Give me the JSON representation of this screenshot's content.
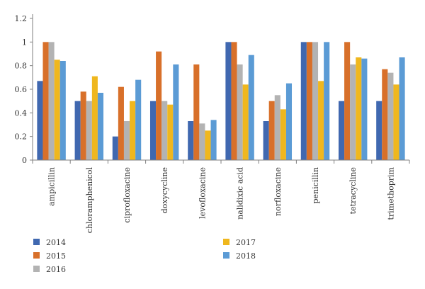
{
  "chart_data": {
    "type": "bar",
    "title": "",
    "xlabel": "",
    "ylabel": "",
    "ylim": [
      0,
      1.2
    ],
    "yticks": [
      "0",
      "0.2",
      "0.4",
      "0.6",
      "0.8",
      "1",
      "1.2"
    ],
    "grid": false,
    "legend_position": "bottom",
    "categories": [
      "ampicillin",
      "chloramphenicol",
      "ciprofloxacine",
      "doxycycline",
      "levofloxacine",
      "nalidixic acid",
      "norfloxacine",
      "penicillin",
      "tetracycline",
      "trimethoprim"
    ],
    "series": [
      {
        "name": "2014",
        "color": "#4068b0",
        "values": [
          0.67,
          0.5,
          0.2,
          0.5,
          0.33,
          1.0,
          0.33,
          1.0,
          0.5,
          0.5
        ]
      },
      {
        "name": "2015",
        "color": "#d8702a",
        "values": [
          1.0,
          0.58,
          0.62,
          0.92,
          0.81,
          1.0,
          0.5,
          1.0,
          1.0,
          0.77
        ]
      },
      {
        "name": "2016",
        "color": "#b3b3b3",
        "values": [
          1.0,
          0.5,
          0.33,
          0.5,
          0.31,
          0.81,
          0.55,
          1.0,
          0.81,
          0.74
        ]
      },
      {
        "name": "2017",
        "color": "#efb71e",
        "values": [
          0.85,
          0.71,
          0.5,
          0.47,
          0.25,
          0.64,
          0.43,
          0.67,
          0.87,
          0.64
        ]
      },
      {
        "name": "2018",
        "color": "#5b9bd5",
        "values": [
          0.84,
          0.57,
          0.68,
          0.81,
          0.34,
          0.89,
          0.65,
          1.0,
          0.86,
          0.87
        ]
      }
    ]
  }
}
